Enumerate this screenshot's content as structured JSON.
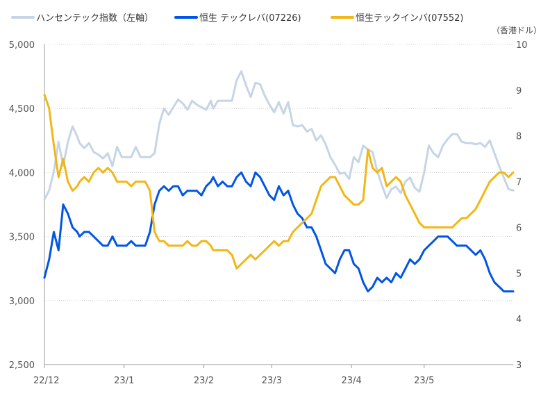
{
  "chart_data": {
    "type": "line",
    "x_labels": [
      "22/12",
      "23/1",
      "23/2",
      "23/3",
      "23/4",
      "23/5"
    ],
    "left_axis": {
      "ylim": [
        2500,
        5000
      ],
      "ticks": [
        "2,500",
        "3,000",
        "3,500",
        "4,000",
        "4,500",
        "5,000"
      ],
      "tick_values": [
        2500,
        3000,
        3500,
        4000,
        4500,
        5000
      ]
    },
    "right_axis": {
      "ylim": [
        3,
        10
      ],
      "ticks": [
        "3",
        "4",
        "5",
        "6",
        "7",
        "8",
        "9",
        "10"
      ],
      "tick_values": [
        3,
        4,
        5,
        6,
        7,
        8,
        9,
        10
      ],
      "unit": "（香港ドル）"
    },
    "series": [
      {
        "name": "ハンセンテック指数（左軸）",
        "axis": "left",
        "color": "#c5d5e6",
        "x": [
          0,
          2,
          4,
          6,
          8,
          10,
          12,
          14,
          15,
          17,
          19,
          21,
          23,
          25,
          27,
          29,
          31,
          33,
          35,
          37,
          39,
          41,
          43,
          45,
          47,
          49,
          51,
          53,
          55,
          57,
          59,
          61,
          63,
          65,
          67,
          69,
          71,
          72,
          74,
          76,
          78,
          80,
          82,
          84,
          86,
          88,
          90,
          92,
          94,
          96,
          98,
          100,
          102,
          104,
          106,
          108,
          110,
          112,
          114,
          116,
          118,
          120,
          122,
          124,
          126,
          128,
          130,
          132,
          134,
          136,
          138,
          140,
          142,
          144,
          146,
          148,
          150,
          152,
          154,
          156,
          158,
          160,
          162,
          164,
          166,
          168,
          170,
          172,
          174,
          176,
          178,
          180,
          182,
          184,
          186,
          188,
          190,
          192,
          194,
          196,
          198,
          200
        ],
        "y": [
          3790,
          3860,
          4010,
          4240,
          4050,
          4240,
          4360,
          4280,
          4230,
          4190,
          4230,
          4160,
          4140,
          4110,
          4150,
          4050,
          4200,
          4120,
          4120,
          4120,
          4200,
          4120,
          4120,
          4120,
          4150,
          4380,
          4500,
          4450,
          4510,
          4570,
          4540,
          4490,
          4560,
          4530,
          4510,
          4490,
          4560,
          4500,
          4560,
          4560,
          4560,
          4560,
          4720,
          4790,
          4680,
          4590,
          4700,
          4690,
          4600,
          4530,
          4470,
          4550,
          4460,
          4550,
          4370,
          4360,
          4370,
          4320,
          4340,
          4250,
          4290,
          4220,
          4120,
          4060,
          3990,
          4000,
          3950,
          4120,
          4080,
          4210,
          4180,
          4160,
          4010,
          3900,
          3800,
          3870,
          3890,
          3840,
          3930,
          3960,
          3880,
          3850,
          4000,
          4210,
          4150,
          4120,
          4210,
          4260,
          4300,
          4300,
          4240,
          4230,
          4230,
          4220,
          4230,
          4200,
          4250,
          4150,
          4050,
          3960,
          3870,
          3860
        ]
      },
      {
        "name": "恒生 テックレバ(07226)",
        "axis": "right",
        "color": "#0055e6",
        "x": [
          0,
          2,
          4,
          6,
          8,
          10,
          12,
          14,
          15,
          17,
          19,
          21,
          23,
          25,
          27,
          29,
          31,
          33,
          35,
          37,
          39,
          41,
          43,
          45,
          47,
          49,
          51,
          53,
          55,
          57,
          59,
          61,
          63,
          65,
          67,
          69,
          71,
          72,
          74,
          76,
          78,
          80,
          82,
          84,
          86,
          88,
          90,
          92,
          94,
          96,
          98,
          100,
          102,
          104,
          106,
          108,
          110,
          112,
          114,
          116,
          118,
          120,
          122,
          124,
          126,
          128,
          130,
          132,
          134,
          136,
          138,
          140,
          142,
          144,
          146,
          148,
          150,
          152,
          154,
          156,
          158,
          160,
          162,
          164,
          166,
          168,
          170,
          172,
          174,
          176,
          178,
          180,
          182,
          184,
          186,
          188,
          190,
          192,
          194,
          196,
          198,
          200
        ],
        "y": [
          4.9,
          5.3,
          5.9,
          5.5,
          6.5,
          6.3,
          6.0,
          5.9,
          5.8,
          5.9,
          5.9,
          5.8,
          5.7,
          5.6,
          5.6,
          5.8,
          5.6,
          5.6,
          5.6,
          5.7,
          5.6,
          5.6,
          5.6,
          5.9,
          6.5,
          6.8,
          6.9,
          6.8,
          6.9,
          6.9,
          6.7,
          6.8,
          6.8,
          6.8,
          6.7,
          6.9,
          7.0,
          7.1,
          6.9,
          7.0,
          6.9,
          6.9,
          7.1,
          7.2,
          7.0,
          6.9,
          7.2,
          7.1,
          6.9,
          6.7,
          6.6,
          6.9,
          6.7,
          6.8,
          6.5,
          6.3,
          6.2,
          6.0,
          6.0,
          5.8,
          5.5,
          5.2,
          5.1,
          5.0,
          5.3,
          5.5,
          5.5,
          5.2,
          5.1,
          4.8,
          4.6,
          4.7,
          4.9,
          4.8,
          4.9,
          4.8,
          5.0,
          4.9,
          5.1,
          5.3,
          5.2,
          5.3,
          5.5,
          5.6,
          5.7,
          5.8,
          5.8,
          5.8,
          5.7,
          5.6,
          5.6,
          5.6,
          5.5,
          5.4,
          5.5,
          5.3,
          5.0,
          4.8,
          4.7,
          4.6,
          4.6,
          4.6
        ]
      },
      {
        "name": "恒生テックインバ(07552)",
        "axis": "right",
        "color": "#f2b616",
        "x": [
          0,
          2,
          4,
          6,
          8,
          10,
          12,
          14,
          15,
          17,
          19,
          21,
          23,
          25,
          27,
          29,
          31,
          33,
          35,
          37,
          39,
          41,
          43,
          45,
          47,
          49,
          51,
          53,
          55,
          57,
          59,
          61,
          63,
          65,
          67,
          69,
          71,
          72,
          74,
          76,
          78,
          80,
          82,
          84,
          86,
          88,
          90,
          92,
          94,
          96,
          98,
          100,
          102,
          104,
          106,
          108,
          110,
          112,
          114,
          116,
          118,
          120,
          122,
          124,
          126,
          128,
          130,
          132,
          134,
          136,
          138,
          140,
          142,
          144,
          146,
          148,
          150,
          152,
          154,
          156,
          158,
          160,
          162,
          164,
          166,
          168,
          170,
          172,
          174,
          176,
          178,
          180,
          182,
          184,
          186,
          188,
          190,
          192,
          194,
          196,
          198,
          200
        ],
        "y": [
          8.9,
          8.6,
          7.8,
          7.1,
          7.5,
          7.0,
          6.8,
          6.9,
          7.0,
          7.1,
          7.0,
          7.2,
          7.3,
          7.2,
          7.3,
          7.2,
          7.0,
          7.0,
          7.0,
          6.9,
          7.0,
          7.0,
          7.0,
          6.8,
          5.9,
          5.7,
          5.7,
          5.6,
          5.6,
          5.6,
          5.6,
          5.7,
          5.6,
          5.6,
          5.7,
          5.7,
          5.6,
          5.5,
          5.5,
          5.5,
          5.5,
          5.4,
          5.1,
          5.2,
          5.3,
          5.4,
          5.3,
          5.4,
          5.5,
          5.6,
          5.7,
          5.6,
          5.7,
          5.7,
          5.9,
          6.0,
          6.1,
          6.2,
          6.3,
          6.6,
          6.9,
          7.0,
          7.1,
          7.1,
          6.9,
          6.7,
          6.6,
          6.5,
          6.5,
          6.6,
          7.7,
          7.3,
          7.2,
          7.3,
          6.9,
          7.0,
          7.1,
          7.0,
          6.7,
          6.5,
          6.3,
          6.1,
          6.0,
          6.0,
          6.0,
          6.0,
          6.0,
          6.0,
          6.0,
          6.1,
          6.2,
          6.2,
          6.3,
          6.4,
          6.6,
          6.8,
          7.0,
          7.1,
          7.2,
          7.2,
          7.1,
          7.2
        ]
      }
    ]
  }
}
